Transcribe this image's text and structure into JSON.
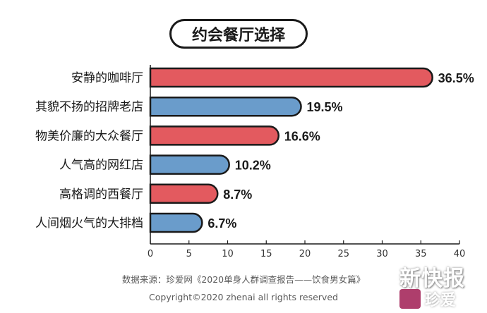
{
  "title": "约会餐厅选择",
  "chart_data": {
    "type": "bar",
    "orientation": "horizontal",
    "title": "约会餐厅选择",
    "categories": [
      "安静的咖啡厅",
      "其貌不扬的招牌老店",
      "物美价廉的大众餐厅",
      "人气高的网红店",
      "高格调的西餐厅",
      "人间烟火气的大排档"
    ],
    "values": [
      36.5,
      19.5,
      16.6,
      10.2,
      8.7,
      6.7
    ],
    "value_labels": [
      "36.5%",
      "19.5%",
      "16.6%",
      "10.2%",
      "8.7%",
      "6.7%"
    ],
    "bar_colors": [
      "#e35a5f",
      "#6a9ccb",
      "#e35a5f",
      "#6a9ccb",
      "#e35a5f",
      "#6a9ccb"
    ],
    "xlim": [
      0,
      40
    ],
    "xticks": [
      0,
      5,
      10,
      15,
      20,
      25,
      30,
      35,
      40
    ],
    "xlabel": "",
    "ylabel": "",
    "grid": false
  },
  "source": "数据来源：珍爱网《2020单身人群调查报告——饮食男女篇》",
  "copyright": "Copyright©2020  zhenai  all rights reserved",
  "watermark": {
    "main": "新快报",
    "sub": "珍爱"
  }
}
